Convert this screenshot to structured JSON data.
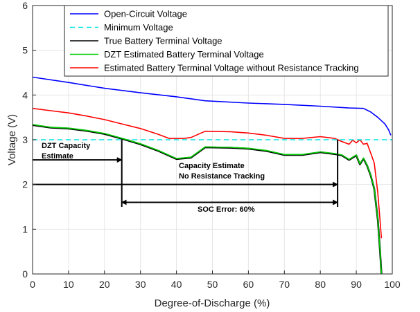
{
  "chart_data": {
    "type": "line",
    "xlabel": "Degree-of-Discharge (%)",
    "ylabel": "Voltage (V)",
    "xlim": [
      0,
      100
    ],
    "ylim": [
      0,
      6
    ],
    "xticks": [
      0,
      10,
      20,
      30,
      40,
      50,
      60,
      70,
      80,
      90,
      100
    ],
    "yticks": [
      0,
      1,
      2,
      3,
      4,
      5,
      6
    ],
    "legend_position": "top",
    "series": [
      {
        "name": "Open-Circuit Voltage",
        "color": "#0000ff",
        "style": "solid",
        "x": [
          0,
          10,
          20,
          30,
          40,
          48,
          60,
          70,
          80,
          88,
          92,
          94,
          96,
          98,
          99,
          99.6
        ],
        "y": [
          4.4,
          4.28,
          4.15,
          4.05,
          3.96,
          3.87,
          3.82,
          3.79,
          3.75,
          3.71,
          3.7,
          3.62,
          3.5,
          3.35,
          3.22,
          3.1
        ]
      },
      {
        "name": "Minimum Voltage",
        "color": "#00e5e5",
        "style": "dashed",
        "x": [
          0,
          100
        ],
        "y": [
          3.0,
          3.0
        ]
      },
      {
        "name": "True Battery Terminal Voltage",
        "color": "#000000",
        "style": "solid",
        "x": [
          0,
          5,
          10,
          15,
          20,
          25,
          30,
          35,
          40,
          44,
          48,
          55,
          60,
          65,
          70,
          75,
          80,
          84,
          86,
          88,
          90,
          91,
          92,
          93,
          94,
          95,
          96,
          96.6,
          97
        ],
        "y": [
          3.33,
          3.27,
          3.25,
          3.2,
          3.13,
          3.02,
          2.9,
          2.75,
          2.57,
          2.6,
          2.83,
          2.82,
          2.8,
          2.75,
          2.66,
          2.66,
          2.72,
          2.68,
          2.65,
          2.55,
          2.65,
          2.45,
          2.58,
          2.42,
          2.2,
          1.9,
          1.2,
          0.5,
          0.0
        ]
      },
      {
        "name": "DZT Estimated Battery Terminal Voltage",
        "color": "#00cc00",
        "style": "solid",
        "x": [
          0,
          5,
          10,
          15,
          20,
          25,
          30,
          35,
          40,
          44,
          48,
          55,
          60,
          65,
          70,
          75,
          80,
          84,
          86,
          88,
          90,
          91,
          92,
          93,
          94,
          95,
          96,
          96.6,
          97
        ],
        "y": [
          3.34,
          3.28,
          3.26,
          3.21,
          3.14,
          3.03,
          2.91,
          2.76,
          2.58,
          2.61,
          2.84,
          2.83,
          2.81,
          2.76,
          2.67,
          2.67,
          2.73,
          2.69,
          2.66,
          2.56,
          2.66,
          2.46,
          2.59,
          2.43,
          2.21,
          1.91,
          1.21,
          0.51,
          0.0
        ]
      },
      {
        "name": "Estimated Battery Terminal Voltage without Resistance Tracking",
        "color": "#ff0000",
        "style": "solid",
        "x": [
          0,
          5,
          10,
          15,
          20,
          25,
          30,
          35,
          38,
          40,
          42,
          44,
          48,
          55,
          60,
          65,
          70,
          75,
          80,
          84,
          86,
          88,
          89,
          90,
          91,
          92,
          93,
          94,
          95,
          96,
          97
        ],
        "y": [
          3.7,
          3.65,
          3.6,
          3.53,
          3.45,
          3.35,
          3.25,
          3.12,
          3.03,
          3.03,
          3.03,
          3.05,
          3.19,
          3.18,
          3.15,
          3.1,
          3.03,
          3.03,
          3.07,
          3.03,
          2.96,
          2.9,
          2.99,
          2.93,
          3.0,
          2.9,
          2.92,
          2.7,
          2.48,
          1.8,
          0.8
        ]
      }
    ],
    "annotations": {
      "dzt_line1": "DZT Capacity",
      "dzt_line2": "Estimate",
      "dzt_x": 24.8,
      "dzt_y": 2.55,
      "nores_line1": "Capacity Estimate",
      "nores_line2": "No Resistance Tracking",
      "nores_x": 84.8,
      "nores_y": 2.0,
      "soc_label": "SOC Error: 60%",
      "soc_x_start": 24.8,
      "soc_x_end": 84.8,
      "soc_y": 1.6
    }
  }
}
